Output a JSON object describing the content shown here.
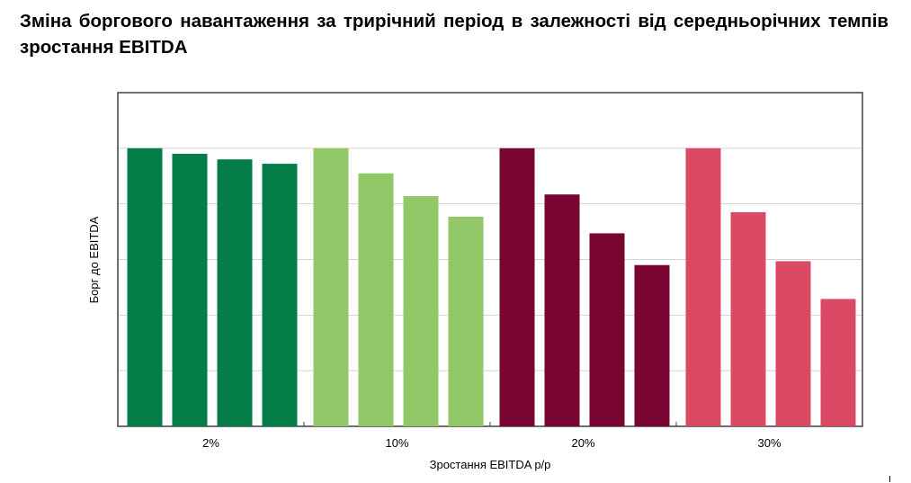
{
  "chart_data": {
    "type": "bar",
    "title": "Зміна боргового навантаження за трирічний період в залежності від середньорічних темпів зростання EBITDA",
    "xlabel": "Зростання EBITDA р/р",
    "ylabel": "Борг до EBITDA",
    "categories": [
      "2%",
      "10%",
      "20%",
      "30%"
    ],
    "bars_per_category": 4,
    "groups": [
      {
        "category": "2%",
        "color": "#047D48",
        "values": [
          5.0,
          4.9,
          4.8,
          4.72
        ]
      },
      {
        "category": "10%",
        "color": "#93C868",
        "values": [
          5.0,
          4.55,
          4.14,
          3.77
        ]
      },
      {
        "category": "20%",
        "color": "#7A0432",
        "values": [
          5.0,
          4.17,
          3.47,
          2.9
        ]
      },
      {
        "category": "30%",
        "color": "#DA4A65",
        "values": [
          5.0,
          3.85,
          2.97,
          2.29
        ]
      }
    ],
    "ylim": [
      0,
      6
    ],
    "y_gridlines": [
      1,
      2,
      3,
      4,
      5
    ],
    "y_tick_labels_shown": false,
    "grid": true,
    "legend": "none"
  }
}
